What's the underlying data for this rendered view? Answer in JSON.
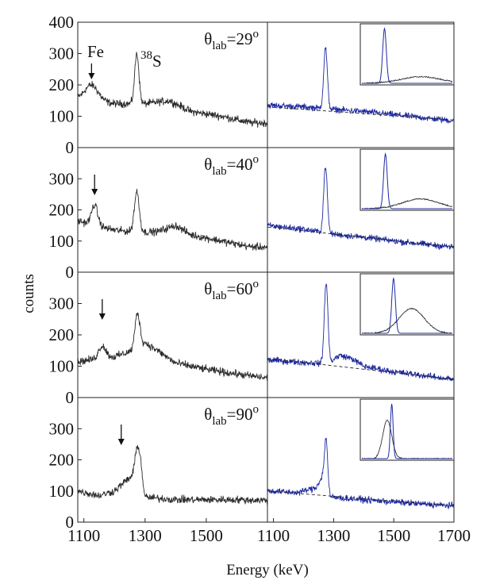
{
  "chart_data": {
    "type": "line",
    "xlabel": "Energy (keV)",
    "ylabel": "counts",
    "layout": "4 rows x 2 columns, shared x axis, shared y axis",
    "ylim": [
      0,
      400
    ],
    "xlim_left": [
      1080,
      1700
    ],
    "xlim_right": [
      1080,
      1700
    ],
    "x_ticks_left": [
      "1100",
      "1300",
      "1500"
    ],
    "x_ticks_right": [
      "1100",
      "1300",
      "1500",
      "1700"
    ],
    "y_ticks": [
      "0",
      "100",
      "200",
      "300",
      "400"
    ],
    "line_colors": {
      "left": "#2b2b2b",
      "right": "#1f2aa0",
      "fit": "#222222",
      "inset": "#1f2aa0",
      "inset_broad": "#333333"
    },
    "peak_label": "38S",
    "peak_label_parts": {
      "mass": "38",
      "element": "S"
    },
    "arrow_label": "Fe",
    "panels": [
      {
        "angle_label": {
          "base": "θ",
          "sub": "lab",
          "value": "=29",
          "sup": "o"
        },
        "left": {
          "baseline": [
            [
              1080,
              155
            ],
            [
              1200,
              140
            ],
            [
              1300,
              140
            ],
            [
              1380,
              150
            ],
            [
              1450,
              115
            ],
            [
              1550,
              100
            ],
            [
              1640,
              80
            ],
            [
              1700,
              78
            ]
          ],
          "peaks": [
            {
              "x": 1125,
              "height": 50,
              "width": 22
            },
            {
              "x": 1273,
              "height": 160,
              "width": 7
            }
          ],
          "arrow_x": 1125
        },
        "right": {
          "baseline": [
            [
              1080,
              135
            ],
            [
              1200,
              130
            ],
            [
              1300,
              122
            ],
            [
              1400,
              115
            ],
            [
              1500,
              105
            ],
            [
              1600,
              95
            ],
            [
              1700,
              85
            ]
          ],
          "peak": {
            "x": 1273,
            "height": 195,
            "width": 6
          },
          "fit_line": [
            [
              1080,
              130
            ],
            [
              1700,
              88
            ]
          ],
          "inset": {
            "narrow": {
              "x": 0.25,
              "h": 1.0,
              "w": 0.02
            },
            "broad": {
              "x": 0.65,
              "h": 0.12,
              "w": 0.22
            }
          }
        }
      },
      {
        "angle_label": {
          "base": "θ",
          "sub": "lab",
          "value": "=40",
          "sup": "o"
        },
        "left": {
          "baseline": [
            [
              1080,
              165
            ],
            [
              1200,
              135
            ],
            [
              1280,
              128
            ],
            [
              1340,
              130
            ],
            [
              1400,
              150
            ],
            [
              1450,
              120
            ],
            [
              1550,
              100
            ],
            [
              1640,
              82
            ],
            [
              1700,
              80
            ]
          ],
          "peaks": [
            {
              "x": 1135,
              "height": 65,
              "width": 10
            },
            {
              "x": 1273,
              "height": 130,
              "width": 8
            }
          ],
          "arrow_x": 1135
        },
        "right": {
          "baseline": [
            [
              1080,
              150
            ],
            [
              1200,
              138
            ],
            [
              1300,
              122
            ],
            [
              1400,
              112
            ],
            [
              1500,
              100
            ],
            [
              1600,
              90
            ],
            [
              1700,
              80
            ]
          ],
          "peak": {
            "x": 1273,
            "height": 215,
            "width": 6
          },
          "fit_line": [
            [
              1080,
              145
            ],
            [
              1700,
              82
            ]
          ],
          "inset": {
            "narrow": {
              "x": 0.26,
              "h": 1.0,
              "w": 0.02
            },
            "broad": {
              "x": 0.65,
              "h": 0.18,
              "w": 0.2
            }
          }
        }
      },
      {
        "angle_label": {
          "base": "θ",
          "sub": "lab",
          "value": "=60",
          "sup": "o"
        },
        "left": {
          "baseline": [
            [
              1080,
              115
            ],
            [
              1200,
              130
            ],
            [
              1260,
              150
            ],
            [
              1300,
              175
            ],
            [
              1340,
              150
            ],
            [
              1400,
              110
            ],
            [
              1500,
              90
            ],
            [
              1600,
              75
            ],
            [
              1700,
              62
            ]
          ],
          "peaks": [
            {
              "x": 1160,
              "height": 40,
              "width": 12
            },
            {
              "x": 1275,
              "height": 110,
              "width": 8
            }
          ],
          "arrow_x": 1160
        },
        "right": {
          "baseline": [
            [
              1080,
              120
            ],
            [
              1200,
              112
            ],
            [
              1280,
              108
            ],
            [
              1320,
              135
            ],
            [
              1360,
              125
            ],
            [
              1400,
              100
            ],
            [
              1500,
              82
            ],
            [
              1600,
              70
            ],
            [
              1700,
              58
            ]
          ],
          "peak": {
            "x": 1275,
            "height": 260,
            "width": 6
          },
          "fit_line": [
            [
              1080,
              125
            ],
            [
              1700,
              58
            ]
          ],
          "inset": {
            "narrow": {
              "x": 0.35,
              "h": 1.0,
              "w": 0.02
            },
            "broad": {
              "x": 0.55,
              "h": 0.45,
              "w": 0.14
            }
          }
        }
      },
      {
        "angle_label": {
          "base": "θ",
          "sub": "lab",
          "value": "=90",
          "sup": "o"
        },
        "left": {
          "baseline": [
            [
              1080,
              100
            ],
            [
              1150,
              85
            ],
            [
              1200,
              100
            ],
            [
              1240,
              135
            ],
            [
              1265,
              150
            ],
            [
              1285,
              175
            ],
            [
              1300,
              80
            ],
            [
              1400,
              72
            ],
            [
              1500,
              72
            ],
            [
              1600,
              72
            ],
            [
              1700,
              70
            ]
          ],
          "peaks": [
            {
              "x": 1275,
              "height": 80,
              "width": 8
            }
          ],
          "arrow_x": 1222
        },
        "right": {
          "baseline": [
            [
              1080,
              100
            ],
            [
              1180,
              95
            ],
            [
              1240,
              110
            ],
            [
              1265,
              150
            ],
            [
              1290,
              80
            ],
            [
              1400,
              72
            ],
            [
              1500,
              65
            ],
            [
              1600,
              58
            ],
            [
              1700,
              52
            ]
          ],
          "peak": {
            "x": 1275,
            "height": 150,
            "width": 5
          },
          "fit_line": [
            [
              1080,
              100
            ],
            [
              1700,
              52
            ]
          ],
          "inset": {
            "narrow": {
              "x": 0.33,
              "h": 1.0,
              "w": 0.015
            },
            "broad": {
              "x": 0.28,
              "h": 0.7,
              "w": 0.05
            }
          }
        }
      }
    ]
  }
}
